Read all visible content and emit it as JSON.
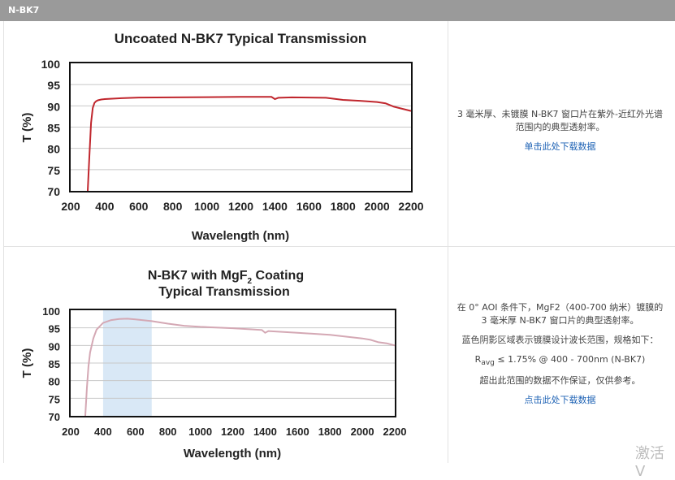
{
  "header": {
    "title": "N-BK7"
  },
  "charts": [
    {
      "title": "Uncoated N-BK7 Typical Transmission",
      "xlabel": "Wavelength (nm)",
      "ylabel": "T (%)",
      "xticks": [
        "200",
        "400",
        "600",
        "800",
        "1000",
        "1200",
        "1400",
        "1600",
        "1800",
        "2000",
        "2200"
      ],
      "yticks": [
        "100",
        "95",
        "90",
        "85",
        "80",
        "75",
        "70"
      ]
    },
    {
      "title_line1": "N-BK7 with MgF",
      "title_sub": "2",
      "title_line1b": " Coating",
      "title_line2": "Typical Transmission",
      "xlabel": "Wavelength (nm)",
      "ylabel": "T (%)",
      "xticks": [
        "200",
        "400",
        "600",
        "800",
        "1000",
        "1200",
        "1400",
        "1600",
        "1800",
        "2000",
        "2200"
      ],
      "yticks": [
        "100",
        "95",
        "90",
        "85",
        "80",
        "75",
        "70"
      ]
    }
  ],
  "descriptions": [
    {
      "text1": "3 毫米厚、未镀膜 N-BK7 窗口片在紫外-近红外光谱",
      "text2": "范围内的典型透射率。",
      "link": "单击此处下载数据"
    },
    {
      "text1": "在 0° AOI 条件下，MgF2（400-700 纳米）镀膜的",
      "text2": "3 毫米厚 N-BK7 窗口片的典型透射率。",
      "text3": "蓝色阴影区域表示镀膜设计波长范围，规格如下：",
      "spec_r": "R",
      "spec_sub": "avg",
      "spec_rest": " ≤ 1.75% @ 400 - 700nm (N-BK7)",
      "text4": "超出此范围的数据不作保证，仅供参考。",
      "link": "点击此处下载数据"
    }
  ],
  "watermark": "激活 V",
  "chart_data": [
    {
      "type": "line",
      "title": "Uncoated N-BK7 Typical Transmission",
      "xlabel": "Wavelength (nm)",
      "ylabel": "T (%)",
      "xlim": [
        200,
        2200
      ],
      "ylim": [
        70,
        100
      ],
      "grid": true,
      "color": "#c0262d",
      "x": [
        300,
        310,
        320,
        330,
        340,
        350,
        360,
        380,
        400,
        500,
        600,
        800,
        1000,
        1200,
        1380,
        1400,
        1420,
        1500,
        1700,
        1800,
        1900,
        2000,
        2050,
        2100,
        2150,
        2200
      ],
      "y": [
        70,
        78,
        86,
        89.5,
        90.7,
        91.1,
        91.3,
        91.5,
        91.6,
        91.8,
        91.95,
        92.0,
        92.05,
        92.1,
        92.1,
        91.6,
        91.9,
        92.0,
        91.9,
        91.4,
        91.2,
        90.9,
        90.6,
        89.8,
        89.3,
        88.8
      ]
    },
    {
      "type": "line",
      "title": "N-BK7 with MgF2 Coating Typical Transmission",
      "xlabel": "Wavelength (nm)",
      "ylabel": "T (%)",
      "xlim": [
        200,
        2200
      ],
      "ylim": [
        70,
        100
      ],
      "grid": true,
      "color": "#d4a8b4",
      "shaded_region": [
        400,
        700
      ],
      "shade_color": "#d9e8f6",
      "x": [
        290,
        300,
        310,
        320,
        340,
        360,
        400,
        450,
        500,
        550,
        600,
        700,
        800,
        900,
        1000,
        1200,
        1380,
        1400,
        1420,
        1600,
        1800,
        2000,
        2050,
        2100,
        2150,
        2200
      ],
      "y": [
        70,
        78,
        84,
        88,
        92,
        94.5,
        96.4,
        97.2,
        97.5,
        97.6,
        97.4,
        96.9,
        96.2,
        95.6,
        95.3,
        94.9,
        94.4,
        93.6,
        94.1,
        93.6,
        93.0,
        92.0,
        91.6,
        90.9,
        90.6,
        90.0
      ]
    }
  ]
}
